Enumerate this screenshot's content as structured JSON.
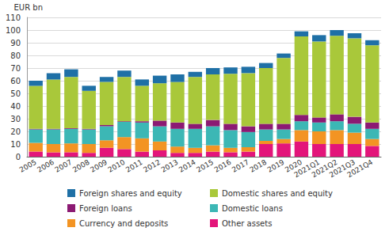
{
  "chart_data": {
    "type": "bar",
    "stacked": true,
    "grid": true,
    "ylabel": "EUR bn",
    "categories": [
      "2005",
      "2006",
      "2007",
      "2008",
      "2009",
      "2010",
      "2011",
      "2012",
      "2013",
      "2014",
      "2015",
      "2016",
      "2017",
      "2018",
      "2019",
      "2020",
      "2021Q1",
      "2021Q2",
      "2021Q3",
      "2021Q4"
    ],
    "ylim": [
      0,
      110
    ],
    "yticks": [
      0,
      10,
      20,
      30,
      40,
      50,
      60,
      70,
      80,
      90,
      100,
      110
    ],
    "legend": "bottom",
    "series": [
      {
        "name": "Other assets",
        "color": "#e3157a",
        "values": [
          4,
          3.5,
          3.5,
          3,
          7,
          6,
          4,
          5,
          3,
          3,
          4,
          3.5,
          4,
          10,
          10.5,
          12,
          10,
          10,
          10,
          8.5
        ]
      },
      {
        "name": "Currency and deposits",
        "color": "#f39423",
        "values": [
          7,
          6.5,
          7,
          7,
          6,
          9.5,
          10.5,
          7,
          5,
          4,
          5,
          3.5,
          3.5,
          2.5,
          3.5,
          9,
          10,
          11,
          9,
          5.5
        ]
      },
      {
        "name": "Domestic loans",
        "color": "#3cb7b5",
        "values": [
          10.5,
          11.5,
          11.5,
          11.5,
          11,
          12,
          12.5,
          12,
          14,
          15,
          15,
          14,
          12,
          9,
          7.5,
          7,
          7,
          7,
          7,
          8
        ]
      },
      {
        "name": "Foreign loans",
        "color": "#8c1a73",
        "values": [
          0.5,
          0.5,
          0.5,
          0.5,
          1,
          0.5,
          1,
          4.5,
          5,
          4,
          5,
          5,
          4.5,
          4.5,
          4.5,
          5,
          4,
          5.5,
          5.5,
          5
        ]
      },
      {
        "name": "Domestic shares and equity",
        "color": "#a9c83a",
        "values": [
          34,
          39,
          40.5,
          30,
          34,
          35,
          28,
          29.5,
          32,
          37,
          36,
          39.5,
          42,
          44,
          52,
          62,
          60,
          62,
          62,
          61
        ]
      },
      {
        "name": "Foreign shares and equity",
        "color": "#1f70a6",
        "values": [
          4,
          5,
          6,
          4,
          4,
          5,
          5,
          6,
          6,
          4,
          5,
          5,
          5,
          4,
          3.5,
          4,
          5,
          4.5,
          4,
          4
        ]
      }
    ]
  }
}
